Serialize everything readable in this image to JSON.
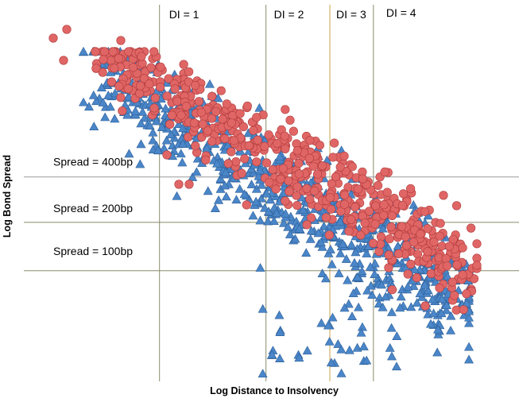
{
  "chart_data": {
    "type": "scatter",
    "title": "",
    "xlabel": "Log Distance to Insolvency",
    "ylabel": "Log Bond Spread",
    "xlim": [
      0,
      100
    ],
    "ylim": [
      0,
      100
    ],
    "grid": false,
    "legend": "none",
    "series": [
      {
        "marker": "triangle",
        "color": "#4a86c8",
        "stroke": "#2e5f99"
      },
      {
        "marker": "circle",
        "color": "#e06666",
        "stroke": "#b23c3c"
      }
    ],
    "reference_lines": {
      "vertical": [
        {
          "label": "DI = 1",
          "x": 27.4,
          "color": "#8a8a6a"
        },
        {
          "label": "DI = 2",
          "x": 48.9,
          "color": "#8a8a6a"
        },
        {
          "label": "DI = 3",
          "x": 61.8,
          "color": "#c9a24a"
        },
        {
          "label": "DI = 4",
          "x": 70.6,
          "color": "#8a8a6a"
        }
      ],
      "horizontal": [
        {
          "label": "Spread = 400bp",
          "y": 53.6,
          "color": "#9a9a9a"
        },
        {
          "label": "Spread = 200bp",
          "y": 41.7,
          "color": "#8a8a6a"
        },
        {
          "label": "Spread = 100bp",
          "y": 29.0,
          "color": "#8a8a6a"
        }
      ]
    }
  }
}
